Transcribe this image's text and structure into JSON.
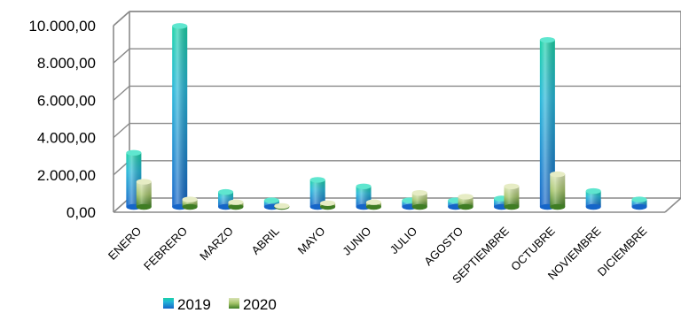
{
  "chart_data": {
    "type": "bar",
    "title": "",
    "xlabel": "",
    "ylabel": "",
    "categories": [
      "ENERO",
      "FEBRERO",
      "MARZO",
      "ABRIL",
      "MAYO",
      "JUNIO",
      "JULIO",
      "AGOSTO",
      "SEPTIEMBRE",
      "OCTUBRE",
      "NOVIEMBRE",
      "DICIEMBRE"
    ],
    "series": [
      {
        "name": "2019",
        "values": [
          2900,
          9700,
          800,
          350,
          1450,
          1100,
          350,
          350,
          450,
          8950,
          850,
          400
        ],
        "color": "#1e9bd7"
      },
      {
        "name": "2020",
        "values": [
          1350,
          400,
          250,
          50,
          200,
          250,
          750,
          550,
          1100,
          1750,
          null,
          null
        ],
        "color": "#78a83c"
      }
    ],
    "ylim": [
      0,
      10000
    ],
    "yticks": [
      0,
      2000,
      4000,
      6000,
      8000,
      10000
    ],
    "ytick_labels": [
      "0,00",
      "2.000,00",
      "4.000,00",
      "6.000,00",
      "8.000,00",
      "10.000,00"
    ],
    "grid": true,
    "legend_position": "bottom-left",
    "style": "3d-cylinder"
  }
}
